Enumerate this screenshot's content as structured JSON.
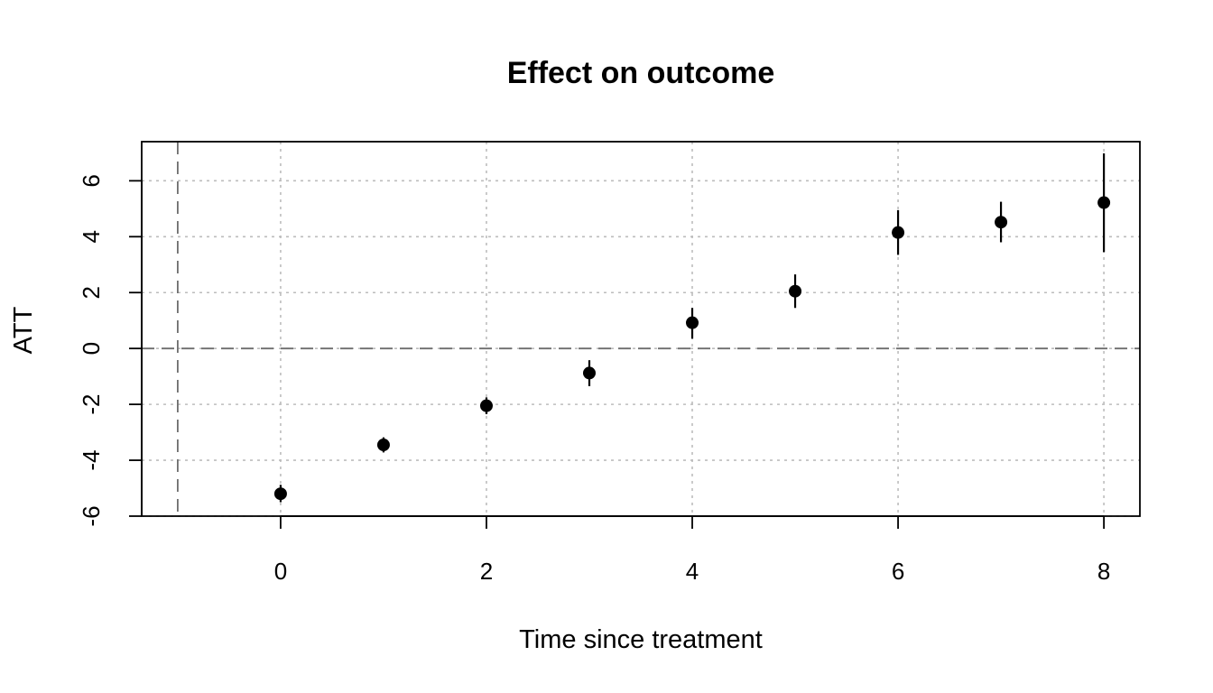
{
  "chart_data": {
    "type": "scatter",
    "title": "Effect on outcome",
    "xlabel": "Time since treatment",
    "ylabel": "ATT",
    "xlim": [
      -1.35,
      8.35
    ],
    "ylim": [
      -6,
      7.4
    ],
    "xticks": [
      0,
      2,
      4,
      6,
      8
    ],
    "yticks": [
      -6,
      -4,
      -2,
      0,
      2,
      4,
      6
    ],
    "grid": true,
    "reference_lines": {
      "x": -1,
      "y": 0
    },
    "series": [
      {
        "x": [
          0,
          1,
          2,
          3,
          4,
          5,
          6,
          7,
          8
        ],
        "y": [
          -5.2,
          -3.45,
          -2.05,
          -0.88,
          0.92,
          2.05,
          4.15,
          4.52,
          5.22
        ],
        "lower": [
          -5.5,
          -3.72,
          -2.35,
          -1.35,
          0.35,
          1.45,
          3.35,
          3.8,
          3.45
        ],
        "upper": [
          -4.88,
          -3.18,
          -1.75,
          -0.42,
          1.45,
          2.65,
          4.95,
          5.25,
          6.98
        ]
      }
    ]
  }
}
